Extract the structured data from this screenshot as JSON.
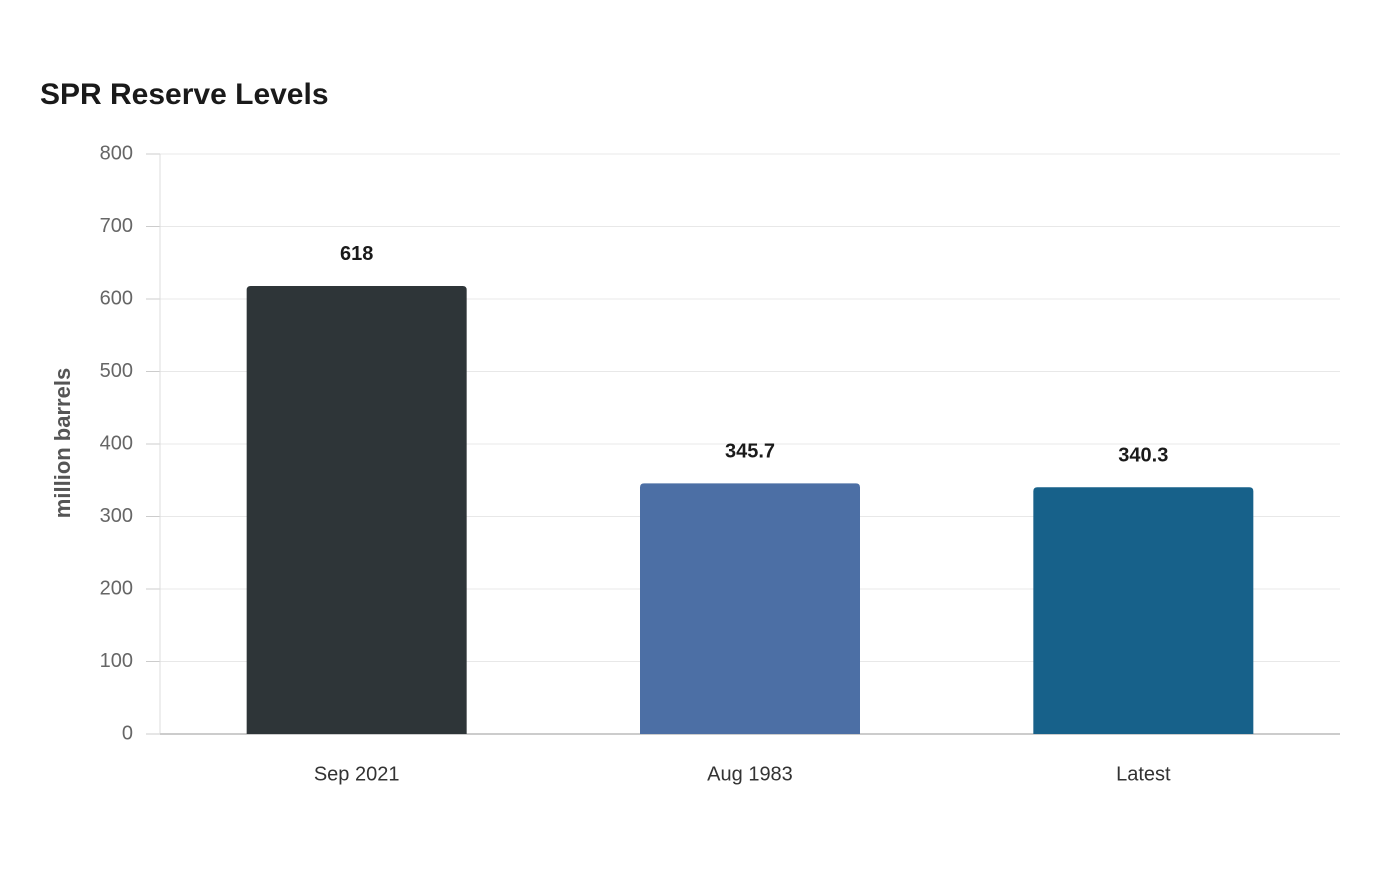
{
  "chart_data": {
    "type": "bar",
    "title": "SPR Reserve Levels",
    "y_label": "million barrels",
    "categories": [
      "Sep 2021",
      "Aug 1983",
      "Latest"
    ],
    "values": [
      618,
      345.7,
      340.3
    ],
    "colors": [
      "#2e3538",
      "#4c6fa5",
      "#17618a"
    ],
    "ylim": [
      0,
      800
    ],
    "yticks": [
      0,
      100,
      200,
      300,
      400,
      500,
      600,
      700,
      800
    ],
    "grid": true
  }
}
